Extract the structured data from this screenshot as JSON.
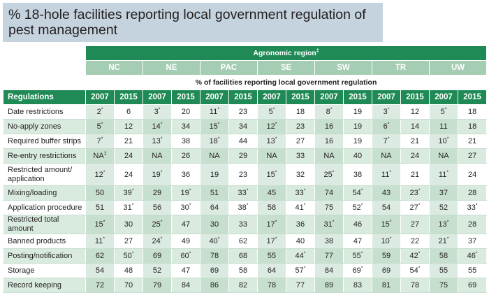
{
  "title": "% 18-hole facilities reporting local government regulation of pest management",
  "agronomic_region_label": "Agronomic region",
  "agronomic_region_mark": "‡",
  "percent_label": "% of facilities reporting local government regulation",
  "regulations_header": "Regulations",
  "regions": [
    "NC",
    "NE",
    "PAC",
    "SE",
    "SW",
    "TR",
    "UW"
  ],
  "years": [
    "2007",
    "2015"
  ],
  "rows": [
    {
      "label": "Date restrictions",
      "cells": [
        [
          "2",
          "*"
        ],
        [
          "6",
          ""
        ],
        [
          "3",
          "*"
        ],
        [
          "20",
          ""
        ],
        [
          "11",
          "*"
        ],
        [
          "23",
          ""
        ],
        [
          "5",
          "*"
        ],
        [
          "18",
          ""
        ],
        [
          "8",
          "*"
        ],
        [
          "19",
          ""
        ],
        [
          "3",
          "*"
        ],
        [
          "12",
          ""
        ],
        [
          "5",
          "*"
        ],
        [
          "18",
          ""
        ]
      ]
    },
    {
      "label": "No-apply zones",
      "cells": [
        [
          "5",
          "*"
        ],
        [
          "12",
          ""
        ],
        [
          "14",
          "*"
        ],
        [
          "34",
          ""
        ],
        [
          "15",
          "*"
        ],
        [
          "34",
          ""
        ],
        [
          "12",
          "*"
        ],
        [
          "23",
          ""
        ],
        [
          "16",
          ""
        ],
        [
          "19",
          ""
        ],
        [
          "6",
          "*"
        ],
        [
          "14",
          ""
        ],
        [
          "11",
          ""
        ],
        [
          "18",
          ""
        ]
      ]
    },
    {
      "label": "Required buffer strips",
      "cells": [
        [
          "7",
          "*"
        ],
        [
          "21",
          ""
        ],
        [
          "13",
          "*"
        ],
        [
          "38",
          ""
        ],
        [
          "18",
          "*"
        ],
        [
          "44",
          ""
        ],
        [
          "13",
          "*"
        ],
        [
          "27",
          ""
        ],
        [
          "16",
          ""
        ],
        [
          "19",
          ""
        ],
        [
          "7",
          "*"
        ],
        [
          "21",
          ""
        ],
        [
          "10",
          "*"
        ],
        [
          "21",
          ""
        ]
      ]
    },
    {
      "label": "Re-entry restrictions",
      "cells": [
        [
          "NA",
          "‡"
        ],
        [
          "24",
          ""
        ],
        [
          "NA",
          ""
        ],
        [
          "26",
          ""
        ],
        [
          "NA",
          ""
        ],
        [
          "29",
          ""
        ],
        [
          "NA",
          ""
        ],
        [
          "33",
          ""
        ],
        [
          "NA",
          ""
        ],
        [
          "40",
          ""
        ],
        [
          "NA",
          ""
        ],
        [
          "24",
          ""
        ],
        [
          "NA",
          ""
        ],
        [
          "27",
          ""
        ]
      ]
    },
    {
      "label": "Restricted amount/ application",
      "cells": [
        [
          "12",
          "*"
        ],
        [
          "24",
          ""
        ],
        [
          "19",
          "*"
        ],
        [
          "36",
          ""
        ],
        [
          "19",
          ""
        ],
        [
          "23",
          ""
        ],
        [
          "15",
          "*"
        ],
        [
          "32",
          ""
        ],
        [
          "25",
          "*"
        ],
        [
          "38",
          ""
        ],
        [
          "11",
          "*"
        ],
        [
          "21",
          ""
        ],
        [
          "11",
          "*"
        ],
        [
          "24",
          ""
        ]
      ]
    },
    {
      "label": "Mixing/loading",
      "cells": [
        [
          "50",
          ""
        ],
        [
          "39",
          "*"
        ],
        [
          "29",
          ""
        ],
        [
          "19",
          "*"
        ],
        [
          "51",
          ""
        ],
        [
          "33",
          "*"
        ],
        [
          "45",
          ""
        ],
        [
          "33",
          "*"
        ],
        [
          "74",
          ""
        ],
        [
          "54",
          "*"
        ],
        [
          "43",
          ""
        ],
        [
          "23",
          "*"
        ],
        [
          "37",
          ""
        ],
        [
          "28",
          ""
        ]
      ]
    },
    {
      "label": "Application procedure",
      "cells": [
        [
          "51",
          ""
        ],
        [
          "31",
          "*"
        ],
        [
          "56",
          ""
        ],
        [
          "30",
          "*"
        ],
        [
          "64",
          ""
        ],
        [
          "38",
          "*"
        ],
        [
          "58",
          ""
        ],
        [
          "41",
          "*"
        ],
        [
          "75",
          ""
        ],
        [
          "52",
          "*"
        ],
        [
          "54",
          ""
        ],
        [
          "27",
          "*"
        ],
        [
          "52",
          ""
        ],
        [
          "33",
          "*"
        ]
      ]
    },
    {
      "label": "Restricted total amount",
      "cells": [
        [
          "15",
          "*"
        ],
        [
          "30",
          ""
        ],
        [
          "25",
          "*"
        ],
        [
          "47",
          ""
        ],
        [
          "30",
          ""
        ],
        [
          "33",
          ""
        ],
        [
          "17",
          "*"
        ],
        [
          "36",
          ""
        ],
        [
          "31",
          "*"
        ],
        [
          "46",
          ""
        ],
        [
          "15",
          "*"
        ],
        [
          "27",
          ""
        ],
        [
          "13",
          "*"
        ],
        [
          "28",
          ""
        ]
      ]
    },
    {
      "label": "Banned products",
      "cells": [
        [
          "11",
          "*"
        ],
        [
          "27",
          ""
        ],
        [
          "24",
          "*"
        ],
        [
          "49",
          ""
        ],
        [
          "40",
          "*"
        ],
        [
          "62",
          ""
        ],
        [
          "17",
          "*"
        ],
        [
          "40",
          ""
        ],
        [
          "38",
          ""
        ],
        [
          "47",
          ""
        ],
        [
          "10",
          "*"
        ],
        [
          "22",
          ""
        ],
        [
          "21",
          "*"
        ],
        [
          "37",
          ""
        ]
      ]
    },
    {
      "label": "Posting/notification",
      "cells": [
        [
          "62",
          ""
        ],
        [
          "50",
          "*"
        ],
        [
          "69",
          ""
        ],
        [
          "60",
          "*"
        ],
        [
          "78",
          ""
        ],
        [
          "68",
          ""
        ],
        [
          "55",
          ""
        ],
        [
          "44",
          "*"
        ],
        [
          "77",
          ""
        ],
        [
          "55",
          "*"
        ],
        [
          "59",
          ""
        ],
        [
          "42",
          "*"
        ],
        [
          "58",
          ""
        ],
        [
          "46",
          "*"
        ]
      ]
    },
    {
      "label": "Storage",
      "cells": [
        [
          "54",
          ""
        ],
        [
          "48",
          ""
        ],
        [
          "52",
          ""
        ],
        [
          "47",
          ""
        ],
        [
          "69",
          ""
        ],
        [
          "58",
          ""
        ],
        [
          "64",
          ""
        ],
        [
          "57",
          "*"
        ],
        [
          "84",
          ""
        ],
        [
          "69",
          "*"
        ],
        [
          "69",
          ""
        ],
        [
          "54",
          "*"
        ],
        [
          "55",
          ""
        ],
        [
          "55",
          ""
        ]
      ]
    },
    {
      "label": "Record keeping",
      "cells": [
        [
          "72",
          ""
        ],
        [
          "70",
          ""
        ],
        [
          "79",
          ""
        ],
        [
          "84",
          ""
        ],
        [
          "86",
          ""
        ],
        [
          "82",
          ""
        ],
        [
          "78",
          ""
        ],
        [
          "77",
          ""
        ],
        [
          "89",
          ""
        ],
        [
          "83",
          ""
        ],
        [
          "81",
          ""
        ],
        [
          "78",
          ""
        ],
        [
          "75",
          ""
        ],
        [
          "69",
          ""
        ]
      ]
    }
  ]
}
